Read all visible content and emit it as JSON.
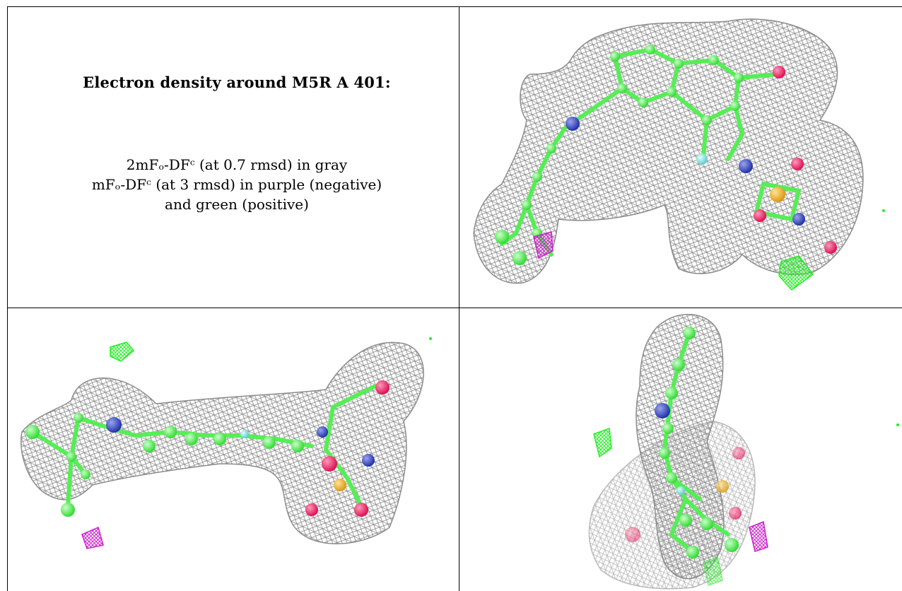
{
  "caption": {
    "heading": "Electron density around M5R A 401:",
    "legend_line_1": "2mFₒ-DFᶜ (at 0.7 rmsd) in gray",
    "legend_line_2": "mFₒ-DFᶜ (at 3 rmsd) in purple (negative)",
    "legend_line_3": "and green (positive)"
  },
  "colors": {
    "mesh_2fofc": "#8c8c8c",
    "mesh_negative": "#cc22cc",
    "mesh_positive": "#22ee22",
    "carbon": "#55ee55",
    "nitrogen": "#4455cc",
    "oxygen": "#ee2266",
    "sulfur": "#eebb33",
    "fluorine": "#88dddd"
  },
  "views": [
    {
      "name": "view-1"
    },
    {
      "name": "view-2"
    },
    {
      "name": "view-3"
    }
  ]
}
